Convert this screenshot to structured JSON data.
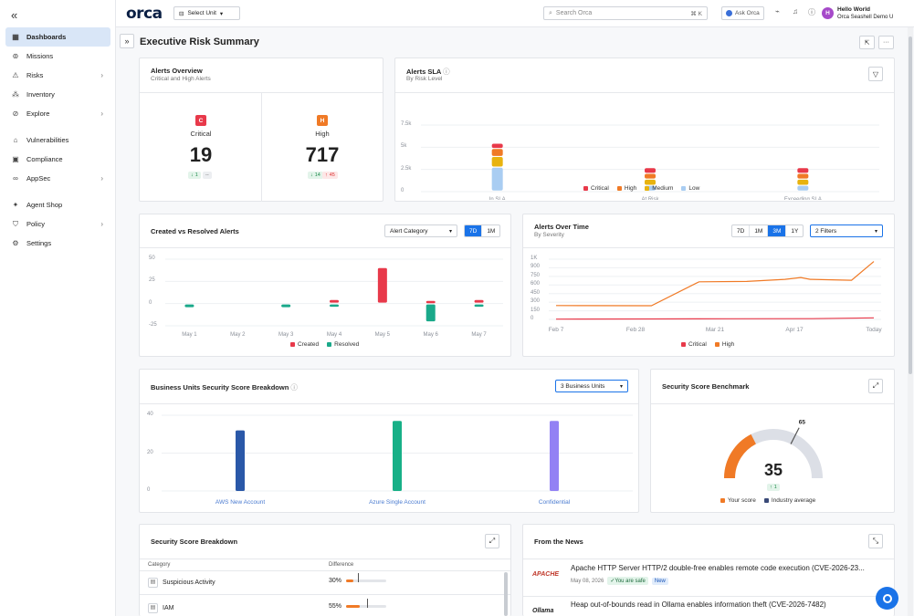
{
  "sidebar": {
    "items": [
      {
        "label": "Dashboards",
        "icon": "dashboard-icon",
        "glyph": "▦",
        "chevron": false
      },
      {
        "label": "Missions",
        "icon": "missions-icon",
        "glyph": "⊚",
        "chevron": false
      },
      {
        "label": "Risks",
        "icon": "warning-icon",
        "glyph": "⚠",
        "chevron": true
      },
      {
        "label": "Inventory",
        "icon": "inventory-icon",
        "glyph": "⁂",
        "chevron": false
      },
      {
        "label": "Explore",
        "icon": "compass-icon",
        "glyph": "⊘",
        "chevron": true
      },
      {
        "label": "Vulnerabilities",
        "icon": "lock-icon",
        "glyph": "⌂",
        "chevron": false
      },
      {
        "label": "Compliance",
        "icon": "clipboard-icon",
        "glyph": "▣",
        "chevron": false
      },
      {
        "label": "AppSec",
        "icon": "infinity-icon",
        "glyph": "∞",
        "chevron": true
      },
      {
        "label": "Agent Shop",
        "icon": "sparkle-icon",
        "glyph": "✦",
        "chevron": false
      },
      {
        "label": "Policy",
        "icon": "shield-icon",
        "glyph": "⛉",
        "chevron": true
      },
      {
        "label": "Settings",
        "icon": "gear-icon",
        "glyph": "⚙",
        "chevron": false
      }
    ]
  },
  "topbar": {
    "logo": "orca",
    "select_unit": "Select Unit",
    "search_placeholder": "Search Orca",
    "search_shortcut": "⌘ K",
    "ask_label": "Ask Orca",
    "avatar_initial": "H",
    "user_name": "Hello World",
    "org_name": "Orca Seashell Demo U"
  },
  "page": {
    "title": "Executive Risk Summary"
  },
  "alerts_overview": {
    "title": "Alerts Overview",
    "subtitle": "Critical and High Alerts",
    "critical": {
      "badge": "C",
      "label": "Critical",
      "value": "19",
      "delta_down": "1",
      "delta_other": "--"
    },
    "high": {
      "badge": "H",
      "label": "High",
      "value": "717",
      "delta_down": "14",
      "delta_up": "45"
    }
  },
  "alerts_sla": {
    "title": "Alerts SLA",
    "subtitle": "By Risk Level",
    "y_ticks": [
      "7.5k",
      "5k",
      "2.5k",
      "0"
    ],
    "legend": [
      "Critical",
      "High",
      "Medium",
      "Low"
    ]
  },
  "created_resolved": {
    "title": "Created vs Resolved Alerts",
    "dropdown": "Alert Category",
    "ranges": [
      "7D",
      "1M"
    ],
    "active_range": "7D",
    "y_ticks": [
      "50",
      "25",
      "0",
      "-25"
    ],
    "legend": [
      "Created",
      "Resolved"
    ]
  },
  "alerts_over_time": {
    "title": "Alerts Over Time",
    "subtitle": "By Severity",
    "ranges": [
      "7D",
      "1M",
      "3M",
      "1Y"
    ],
    "active_range": "3M",
    "filter": "2 Filters",
    "y_ticks": [
      "1K",
      "900",
      "750",
      "600",
      "450",
      "300",
      "150",
      "0"
    ],
    "legend": [
      "Critical",
      "High"
    ]
  },
  "bu_score": {
    "title": "Business Units Security Score Breakdown",
    "dropdown": "3 Business Units",
    "y_ticks": [
      "40",
      "20",
      "0"
    ]
  },
  "benchmark": {
    "title": "Security Score Benchmark",
    "score": "35",
    "industry": "65",
    "delta": "1",
    "legend": [
      "Your score",
      "Industry average"
    ]
  },
  "score_breakdown": {
    "title": "Security Score Breakdown",
    "col_category": "Category",
    "col_difference": "Difference",
    "rows": [
      {
        "category": "Suspicious Activity",
        "value": "30%"
      },
      {
        "category": "IAM",
        "value": "55%"
      }
    ]
  },
  "news": {
    "title": "From the News",
    "items": [
      {
        "title": "Apache HTTP Server HTTP/2 double-free enables remote code execution (CVE-2026-23...",
        "date": "May 08, 2026",
        "safe": "You are safe",
        "new": "New",
        "source_logo": "APACHE"
      },
      {
        "title": "Heap out-of-bounds read in Ollama enables information theft (CVE-2026-7482)",
        "source_logo": "Ollama"
      }
    ]
  },
  "chart_data": [
    {
      "type": "bar",
      "title": "Alerts SLA",
      "categories": [
        "In SLA",
        "At Risk",
        "Exceeding SLA"
      ],
      "stacked": true,
      "ylim": [
        0,
        7500
      ],
      "series": [
        {
          "name": "Low",
          "color": "#a9cdf2",
          "values": [
            2700,
            650,
            650
          ]
        },
        {
          "name": "Medium",
          "color": "#e8b30f",
          "values": [
            1200,
            700,
            700
          ]
        },
        {
          "name": "High",
          "color": "#f07a26",
          "values": [
            900,
            650,
            650
          ]
        },
        {
          "name": "Critical",
          "color": "#e8394a",
          "values": [
            600,
            650,
            650
          ]
        }
      ]
    },
    {
      "type": "bar",
      "title": "Created vs Resolved Alerts",
      "categories": [
        "May 1",
        "May 2",
        "May 3",
        "May 4",
        "May 5",
        "May 6",
        "May 7"
      ],
      "ylim": [
        -25,
        50
      ],
      "series": [
        {
          "name": "Created",
          "color": "#e8394a",
          "values": [
            0,
            0,
            0,
            3,
            39,
            2,
            3
          ]
        },
        {
          "name": "Resolved",
          "color": "#1aa98a",
          "values": [
            -3,
            0,
            -3,
            -2,
            0,
            -19,
            -2
          ]
        }
      ]
    },
    {
      "type": "line",
      "title": "Alerts Over Time",
      "x": [
        "Feb 7",
        "Feb 28",
        "Mar 21",
        "Apr 17",
        "Today"
      ],
      "ylim": [
        0,
        1000
      ],
      "series": [
        {
          "name": "Critical",
          "color": "#e8394a",
          "points": [
            [
              0,
              5
            ],
            [
              0.3,
              8
            ],
            [
              0.55,
              10
            ],
            [
              0.8,
              12
            ],
            [
              1,
              25
            ]
          ]
        },
        {
          "name": "High",
          "color": "#f07a26",
          "points": [
            [
              0,
              230
            ],
            [
              0.3,
              228
            ],
            [
              0.45,
              625
            ],
            [
              0.6,
              630
            ],
            [
              0.72,
              665
            ],
            [
              0.77,
              695
            ],
            [
              0.8,
              665
            ],
            [
              0.93,
              650
            ],
            [
              1,
              960
            ]
          ]
        }
      ]
    },
    {
      "type": "bar",
      "title": "Business Units Security Score Breakdown",
      "categories": [
        "AWS New Account",
        "Azure Single Account",
        "Confidential"
      ],
      "ylim": [
        0,
        40
      ],
      "colors": [
        "#2a58a8",
        "#17b087",
        "#9381f4"
      ],
      "values": [
        32,
        37,
        37
      ]
    }
  ]
}
